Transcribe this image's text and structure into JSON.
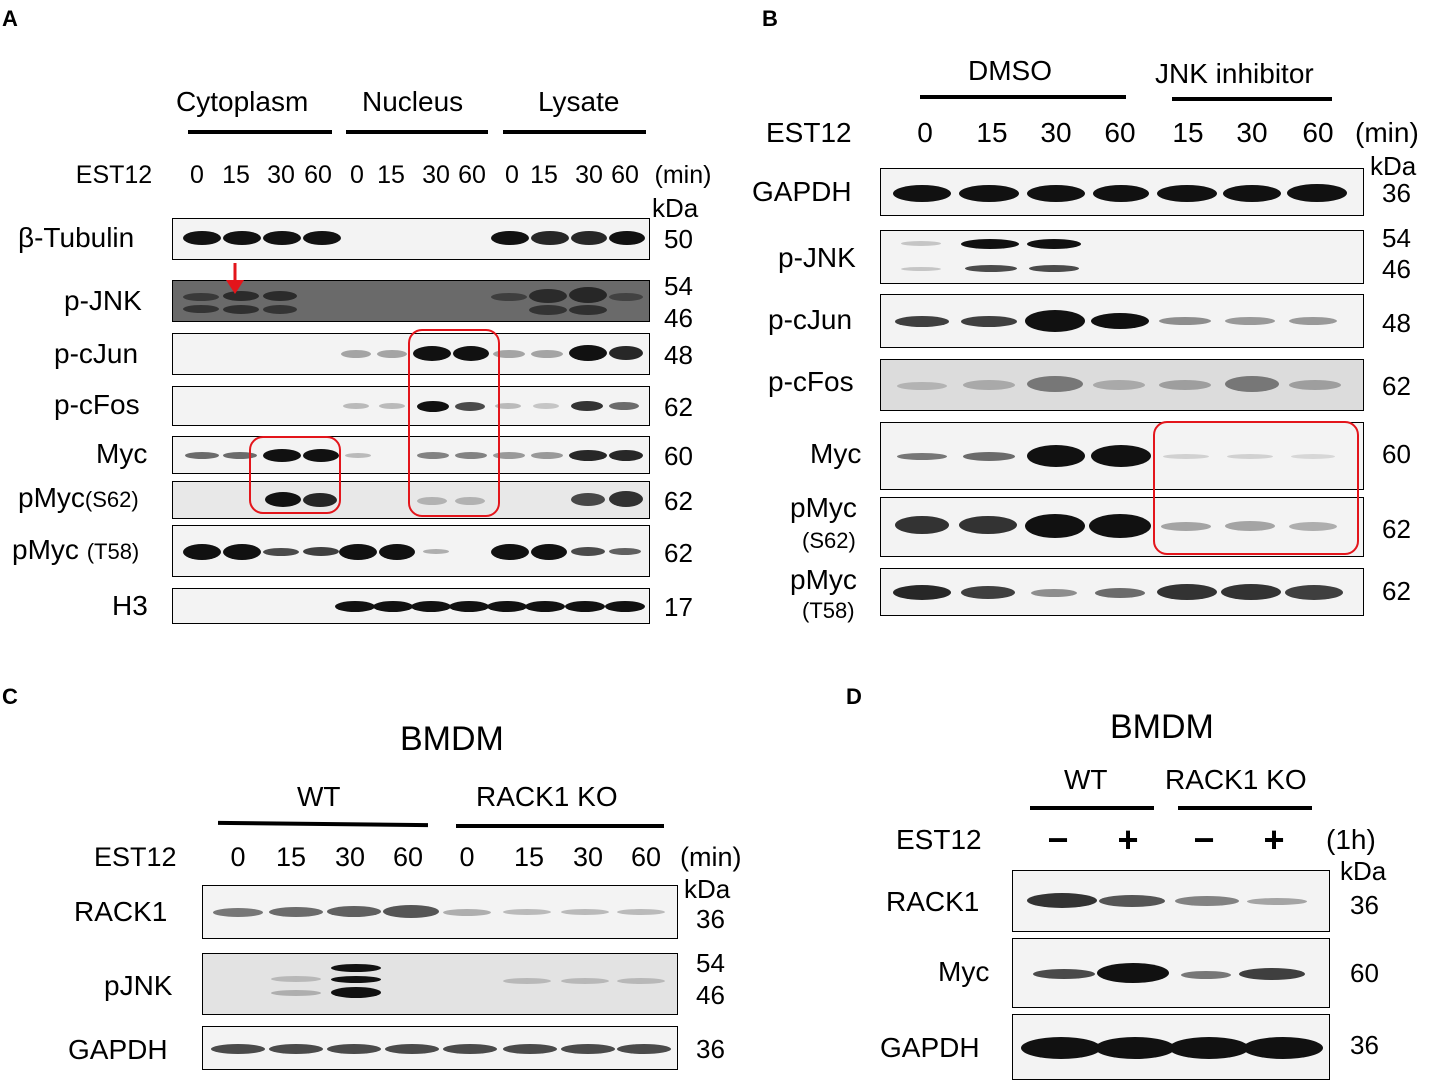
{
  "panelA": {
    "letter": "A",
    "groups": [
      "Cytoplasm",
      "Nucleus",
      "Lysate"
    ],
    "treatment_label": "EST12",
    "times": [
      "0",
      "15",
      "30",
      "60",
      "0",
      "15",
      "30",
      "60",
      "0",
      "15",
      "30",
      "60"
    ],
    "time_unit": "(min)",
    "kda_label": "kDa",
    "rows": [
      {
        "label": "β-Tubulin",
        "kda": [
          "50"
        ]
      },
      {
        "label": "p-JNK",
        "kda": [
          "54",
          "46"
        ]
      },
      {
        "label": "p-cJun",
        "kda": [
          "48"
        ]
      },
      {
        "label": "p-cFos",
        "kda": [
          "62"
        ]
      },
      {
        "label": "Myc",
        "kda": [
          "60"
        ]
      },
      {
        "label": "pMyc",
        "label_sub": "(S62)",
        "kda": [
          "62"
        ]
      },
      {
        "label": "pMyc",
        "label_sub": "(T58)",
        "kda": [
          "62"
        ]
      },
      {
        "label": "H3",
        "kda": [
          "17"
        ]
      }
    ]
  },
  "panelB": {
    "letter": "B",
    "groups": [
      "DMSO",
      "JNK inhibitor"
    ],
    "treatment_label": "EST12",
    "times": [
      "0",
      "15",
      "30",
      "60",
      "15",
      "30",
      "60"
    ],
    "time_unit": "(min)",
    "kda_label": "kDa",
    "rows": [
      {
        "label": "GAPDH",
        "kda": [
          "36"
        ]
      },
      {
        "label": "p-JNK",
        "kda": [
          "54",
          "46"
        ]
      },
      {
        "label": "p-cJun",
        "kda": [
          "48"
        ]
      },
      {
        "label": "p-cFos",
        "kda": [
          "62"
        ]
      },
      {
        "label": "Myc",
        "kda": [
          "60"
        ]
      },
      {
        "label": "pMyc",
        "label_sub": "(S62)",
        "kda": [
          "62"
        ]
      },
      {
        "label": "pMyc",
        "label_sub": "(T58)",
        "kda": [
          "62"
        ]
      }
    ]
  },
  "panelC": {
    "letter": "C",
    "title": "BMDM",
    "groups": [
      "WT",
      "RACK1 KO"
    ],
    "treatment_label": "EST12",
    "times": [
      "0",
      "15",
      "30",
      "60",
      "0",
      "15",
      "30",
      "60"
    ],
    "time_unit": "(min)",
    "kda_label": "kDa",
    "rows": [
      {
        "label": "RACK1",
        "kda": [
          "36"
        ]
      },
      {
        "label": "pJNK",
        "kda": [
          "54",
          "46"
        ]
      },
      {
        "label": "GAPDH",
        "kda": [
          "36"
        ]
      }
    ]
  },
  "panelD": {
    "letter": "D",
    "title": "BMDM",
    "groups": [
      "WT",
      "RACK1 KO"
    ],
    "treatment_label": "EST12",
    "conditions": [
      "−",
      "+",
      "−",
      "+"
    ],
    "time_unit": "(1h)",
    "kda_label": "kDa",
    "rows": [
      {
        "label": "RACK1",
        "kda": [
          "36"
        ]
      },
      {
        "label": "Myc",
        "kda": [
          "60"
        ]
      },
      {
        "label": "GAPDH",
        "kda": [
          "36"
        ]
      }
    ]
  },
  "annotation_color": "#e3151b"
}
